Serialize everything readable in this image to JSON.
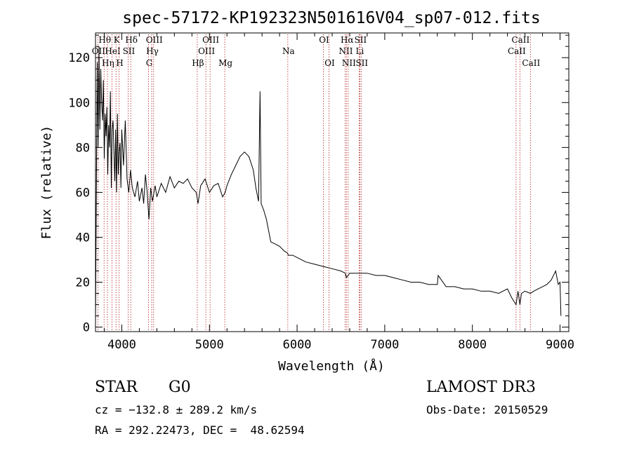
{
  "chart_data": {
    "type": "line",
    "title": "spec-57172-KP192323N501616V04_sp07-012.fits",
    "xlabel": "Wavelength (Å)",
    "ylabel": "Flux (relative)",
    "xlim": [
      3700,
      9100
    ],
    "ylim": [
      -2,
      131
    ],
    "xticks": [
      4000,
      5000,
      6000,
      7000,
      8000,
      9000
    ],
    "yticks": [
      0,
      20,
      40,
      60,
      80,
      100,
      120
    ],
    "grid": false,
    "line_color": "#000000",
    "marker_color": "#b22222",
    "spectral_lines": [
      {
        "name": "OII",
        "wavelength": 3727,
        "row": 2
      },
      {
        "name": "Hθ",
        "wavelength": 3798,
        "row": 1
      },
      {
        "name": "Hη",
        "wavelength": 3835,
        "row": 3
      },
      {
        "name": "HeI",
        "wavelength": 3889,
        "row": 2
      },
      {
        "name": "K",
        "wavelength": 3934,
        "row": 1
      },
      {
        "name": "H",
        "wavelength": 3968,
        "row": 3
      },
      {
        "name": "Hδ",
        "wavelength": 4102,
        "row": 1
      },
      {
        "name": "SII",
        "wavelength": 4072,
        "row": 2
      },
      {
        "name": "G",
        "wavelength": 4305,
        "row": 3
      },
      {
        "name": "Hγ",
        "wavelength": 4341,
        "row": 2
      },
      {
        "name": "OIII",
        "wavelength": 4363,
        "row": 1
      },
      {
        "name": "Hβ",
        "wavelength": 4861,
        "row": 3
      },
      {
        "name": "OIII",
        "wavelength": 4959,
        "row": 2
      },
      {
        "name": "OIII",
        "wavelength": 5007,
        "row": 1
      },
      {
        "name": "Mg",
        "wavelength": 5175,
        "row": 3
      },
      {
        "name": "Na",
        "wavelength": 5894,
        "row": 2
      },
      {
        "name": "OI",
        "wavelength": 6300,
        "row": 1
      },
      {
        "name": "OI",
        "wavelength": 6364,
        "row": 3
      },
      {
        "name": "NII",
        "wavelength": 6548,
        "row": 2
      },
      {
        "name": "Hα",
        "wavelength": 6563,
        "row": 1
      },
      {
        "name": "NII",
        "wavelength": 6583,
        "row": 3
      },
      {
        "name": "Li",
        "wavelength": 6708,
        "row": 2
      },
      {
        "name": "SII",
        "wavelength": 6716,
        "row": 1
      },
      {
        "name": "SII",
        "wavelength": 6731,
        "row": 3
      },
      {
        "name": "CaII",
        "wavelength": 8498,
        "row": 2
      },
      {
        "name": "CaII",
        "wavelength": 8542,
        "row": 1
      },
      {
        "name": "CaII",
        "wavelength": 8662,
        "row": 3
      }
    ],
    "series": [
      {
        "x": [
          3700,
          3710,
          3720,
          3730,
          3740,
          3750,
          3760,
          3770,
          3780,
          3790,
          3800,
          3810,
          3820,
          3830,
          3840,
          3850,
          3860,
          3870,
          3880,
          3890,
          3900,
          3910,
          3920,
          3930,
          3940,
          3950,
          3960,
          3970,
          3980,
          3990,
          4000,
          4020,
          4040,
          4060,
          4080,
          4100,
          4120,
          4150,
          4180,
          4200,
          4230,
          4250,
          4270,
          4290,
          4310,
          4330,
          4350,
          4380,
          4400,
          4450,
          4500,
          4550,
          4600,
          4650,
          4700,
          4750,
          4800,
          4850,
          4870,
          4900,
          4950,
          5000,
          5050,
          5100,
          5150,
          5180,
          5200,
          5250,
          5300,
          5350,
          5400,
          5450,
          5500,
          5530,
          5560,
          5577,
          5590,
          5620,
          5650,
          5680,
          5700,
          5750,
          5800,
          5850,
          5890,
          5900,
          5950,
          6000,
          6100,
          6200,
          6300,
          6400,
          6500,
          6550,
          6563,
          6600,
          6700,
          6800,
          6900,
          7000,
          7100,
          7200,
          7300,
          7400,
          7500,
          7600,
          7610,
          7700,
          7800,
          7900,
          8000,
          8100,
          8200,
          8300,
          8400,
          8450,
          8498,
          8520,
          8542,
          8560,
          8600,
          8662,
          8700,
          8750,
          8800,
          8850,
          8900,
          8950,
          8980,
          9000,
          9010
        ],
        "y": [
          2,
          60,
          118,
          80,
          125,
          88,
          115,
          100,
          92,
          110,
          75,
          95,
          85,
          98,
          68,
          90,
          80,
          105,
          62,
          88,
          92,
          78,
          65,
          88,
          60,
          95,
          68,
          78,
          82,
          62,
          88,
          72,
          92,
          66,
          60,
          70,
          62,
          58,
          65,
          56,
          62,
          55,
          68,
          60,
          48,
          62,
          56,
          63,
          58,
          64,
          60,
          67,
          62,
          65,
          64,
          66,
          62,
          60,
          55,
          63,
          66,
          60,
          63,
          64,
          58,
          60,
          63,
          68,
          72,
          76,
          78,
          76,
          70,
          62,
          56,
          105,
          55,
          52,
          48,
          42,
          38,
          37,
          36,
          34,
          33,
          32,
          32,
          31,
          29,
          28,
          27,
          26,
          25,
          24,
          22,
          24,
          24,
          24,
          23,
          23,
          22,
          21,
          20,
          20,
          19,
          19,
          23,
          18,
          18,
          17,
          17,
          16,
          16,
          15,
          17,
          13,
          10,
          16,
          10,
          15,
          16,
          15,
          16,
          17,
          18,
          19,
          21,
          25,
          19,
          20,
          5
        ]
      }
    ]
  },
  "info": {
    "obj_class": "STAR",
    "subclass": "G0",
    "survey": "LAMOST DR3",
    "cz": "cz = −132.8 ± 289.2 km/s",
    "obs_date": "Obs-Date: 20150529",
    "coords": "RA = 292.22473, DEC =  48.62594"
  }
}
